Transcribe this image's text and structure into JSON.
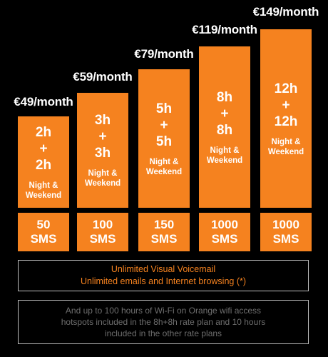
{
  "plans": [
    {
      "price": "€49/month",
      "hours_a": "2h",
      "plus": "+",
      "hours_b": "2h",
      "nw_1": "Night &",
      "nw_2": "Weekend",
      "sms_count": "50",
      "sms_unit": "SMS"
    },
    {
      "price": "€59/month",
      "hours_a": "3h",
      "plus": "+",
      "hours_b": "3h",
      "nw_1": "Night &",
      "nw_2": "Weekend",
      "sms_count": "100",
      "sms_unit": "SMS"
    },
    {
      "price": "€79/month",
      "hours_a": "5h",
      "plus": "+",
      "hours_b": "5h",
      "nw_1": "Night &",
      "nw_2": "Weekend",
      "sms_count": "150",
      "sms_unit": "SMS"
    },
    {
      "price": "€119/month",
      "hours_a": "8h",
      "plus": "+",
      "hours_b": "8h",
      "nw_1": "Night &",
      "nw_2": "Weekend",
      "sms_count": "1000",
      "sms_unit": "SMS"
    },
    {
      "price": "€149/month",
      "hours_a": "12h",
      "plus": "+",
      "hours_b": "12h",
      "nw_1": "Night &",
      "nw_2": "Weekend",
      "sms_count": "1000",
      "sms_unit": "SMS"
    }
  ],
  "included_box": {
    "line_1": "Unlimited Visual Voicemail",
    "line_2": "Unlimited emails and Internet browsing (*)"
  },
  "wifi_box": {
    "line_1": "And up to 100 hours of Wi-Fi on Orange wifi access",
    "line_2": "hotspots included in the 8h+8h rate plan and 10 hours",
    "line_3": "included in the other rate plans"
  },
  "colors": {
    "accent": "#f5821f",
    "background": "#000000",
    "muted_text": "#6e6e6e",
    "border": "#bdbdbd"
  }
}
